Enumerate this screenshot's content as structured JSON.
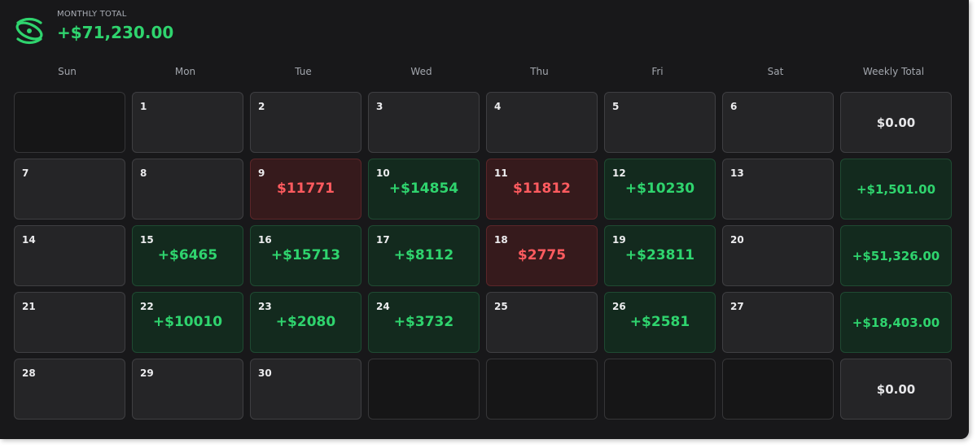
{
  "brand": {
    "icon": "orbit-logo-icon",
    "accent": "#2fd46e",
    "loss_color": "#ff5b5f"
  },
  "summary": {
    "label": "MONTHLY TOTAL",
    "value": "+$71,230.00"
  },
  "weekdays": [
    "Sun",
    "Mon",
    "Tue",
    "Wed",
    "Thu",
    "Fri",
    "Sat",
    "Weekly Total"
  ],
  "weeks": [
    {
      "days": [
        {
          "day": "",
          "pnl": "",
          "status": "empty"
        },
        {
          "day": "1",
          "pnl": "",
          "status": "neutral"
        },
        {
          "day": "2",
          "pnl": "",
          "status": "neutral"
        },
        {
          "day": "3",
          "pnl": "",
          "status": "neutral"
        },
        {
          "day": "4",
          "pnl": "",
          "status": "neutral"
        },
        {
          "day": "5",
          "pnl": "",
          "status": "neutral"
        },
        {
          "day": "6",
          "pnl": "",
          "status": "neutral"
        }
      ],
      "weekly_total": "$0.00",
      "weekly_status": "neutral"
    },
    {
      "days": [
        {
          "day": "7",
          "pnl": "",
          "status": "neutral"
        },
        {
          "day": "8",
          "pnl": "",
          "status": "neutral"
        },
        {
          "day": "9",
          "pnl": "$11771",
          "status": "loss"
        },
        {
          "day": "10",
          "pnl": "+$14854",
          "status": "gain"
        },
        {
          "day": "11",
          "pnl": "$11812",
          "status": "loss"
        },
        {
          "day": "12",
          "pnl": "+$10230",
          "status": "gain"
        },
        {
          "day": "13",
          "pnl": "",
          "status": "neutral"
        }
      ],
      "weekly_total": "+$1,501.00",
      "weekly_status": "gain"
    },
    {
      "days": [
        {
          "day": "14",
          "pnl": "",
          "status": "neutral"
        },
        {
          "day": "15",
          "pnl": "+$6465",
          "status": "gain"
        },
        {
          "day": "16",
          "pnl": "+$15713",
          "status": "gain"
        },
        {
          "day": "17",
          "pnl": "+$8112",
          "status": "gain"
        },
        {
          "day": "18",
          "pnl": "$2775",
          "status": "loss"
        },
        {
          "day": "19",
          "pnl": "+$23811",
          "status": "gain"
        },
        {
          "day": "20",
          "pnl": "",
          "status": "neutral"
        }
      ],
      "weekly_total": "+$51,326.00",
      "weekly_status": "gain"
    },
    {
      "days": [
        {
          "day": "21",
          "pnl": "",
          "status": "neutral"
        },
        {
          "day": "22",
          "pnl": "+$10010",
          "status": "gain"
        },
        {
          "day": "23",
          "pnl": "+$2080",
          "status": "gain"
        },
        {
          "day": "24",
          "pnl": "+$3732",
          "status": "gain"
        },
        {
          "day": "25",
          "pnl": "",
          "status": "neutral"
        },
        {
          "day": "26",
          "pnl": "+$2581",
          "status": "gain"
        },
        {
          "day": "27",
          "pnl": "",
          "status": "neutral"
        }
      ],
      "weekly_total": "+$18,403.00",
      "weekly_status": "gain"
    },
    {
      "days": [
        {
          "day": "28",
          "pnl": "",
          "status": "neutral"
        },
        {
          "day": "29",
          "pnl": "",
          "status": "neutral"
        },
        {
          "day": "30",
          "pnl": "",
          "status": "neutral"
        },
        {
          "day": "",
          "pnl": "",
          "status": "empty"
        },
        {
          "day": "",
          "pnl": "",
          "status": "empty"
        },
        {
          "day": "",
          "pnl": "",
          "status": "empty"
        },
        {
          "day": "",
          "pnl": "",
          "status": "empty"
        }
      ],
      "weekly_total": "$0.00",
      "weekly_status": "neutral"
    }
  ]
}
